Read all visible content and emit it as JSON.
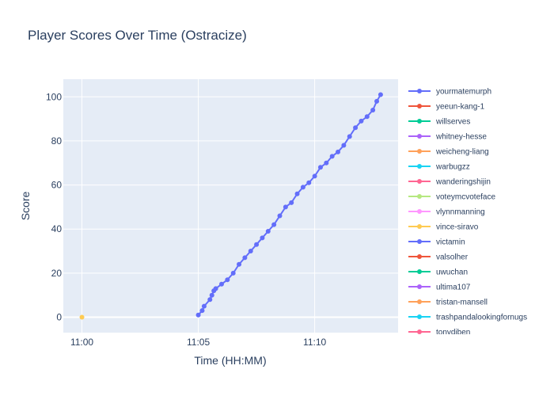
{
  "chart_data": {
    "type": "line",
    "title": "Player Scores Over Time (Ostracize)",
    "xlabel": "Time (HH:MM)",
    "ylabel": "Score",
    "x_ticks": [
      "11:00",
      "11:05",
      "11:10"
    ],
    "y_ticks": [
      0,
      20,
      40,
      60,
      80,
      100
    ],
    "xlim": [
      "10:59:12",
      "11:13:35"
    ],
    "ylim": [
      -7,
      108
    ],
    "grid": true,
    "legend_position": "right",
    "plot_bg": "#e5ecf6",
    "series": [
      {
        "name": "yourmatemurph",
        "color": "#636efa",
        "x": [
          "11:05:00",
          "11:05:10",
          "11:05:15",
          "11:05:30",
          "11:05:35",
          "11:05:40",
          "11:05:45",
          "11:06:00",
          "11:06:15",
          "11:06:30",
          "11:06:45",
          "11:07:00",
          "11:07:15",
          "11:07:30",
          "11:07:45",
          "11:08:00",
          "11:08:15",
          "11:08:30",
          "11:08:45",
          "11:09:00",
          "11:09:15",
          "11:09:30",
          "11:09:45",
          "11:10:00",
          "11:10:15",
          "11:10:30",
          "11:10:45",
          "11:11:00",
          "11:11:15",
          "11:11:30",
          "11:11:45",
          "11:12:00",
          "11:12:15",
          "11:12:30",
          "11:12:40",
          "11:12:50"
        ],
        "y": [
          1,
          3,
          5,
          8,
          10,
          12,
          13,
          15,
          17,
          20,
          24,
          27,
          30,
          33,
          36,
          39,
          42,
          46,
          50,
          52,
          56,
          59,
          61,
          64,
          68,
          70,
          73,
          75,
          78,
          82,
          86,
          89,
          91,
          94,
          98,
          101
        ]
      },
      {
        "name": "yeeun-kang-1",
        "color": "#EF553B",
        "x": [],
        "y": []
      },
      {
        "name": "willserves",
        "color": "#00cc96",
        "x": [],
        "y": []
      },
      {
        "name": "whitney-hesse",
        "color": "#ab63fa",
        "x": [],
        "y": []
      },
      {
        "name": "weicheng-liang",
        "color": "#FFA15A",
        "x": [],
        "y": []
      },
      {
        "name": "warbugzz",
        "color": "#19d3f3",
        "x": [],
        "y": []
      },
      {
        "name": "wanderingshijin",
        "color": "#FF6692",
        "x": [],
        "y": []
      },
      {
        "name": "voteymcvoteface",
        "color": "#B6E880",
        "x": [],
        "y": []
      },
      {
        "name": "vlynnmanning",
        "color": "#FF97FF",
        "x": [],
        "y": []
      },
      {
        "name": "vince-siravo",
        "color": "#FECB52",
        "x": [
          "11:00:00"
        ],
        "y": [
          0
        ]
      },
      {
        "name": "victamin",
        "color": "#636efa",
        "x": [],
        "y": []
      },
      {
        "name": "valsolher",
        "color": "#EF553B",
        "x": [],
        "y": []
      },
      {
        "name": "uwuchan",
        "color": "#00cc96",
        "x": [],
        "y": []
      },
      {
        "name": "ultima107",
        "color": "#ab63fa",
        "x": [],
        "y": []
      },
      {
        "name": "tristan-mansell",
        "color": "#FFA15A",
        "x": [],
        "y": []
      },
      {
        "name": "trashpandalookingfornugs",
        "color": "#19d3f3",
        "x": [],
        "y": []
      },
      {
        "name": "tonydiben",
        "color": "#FF6692",
        "x": [],
        "y": []
      }
    ]
  }
}
